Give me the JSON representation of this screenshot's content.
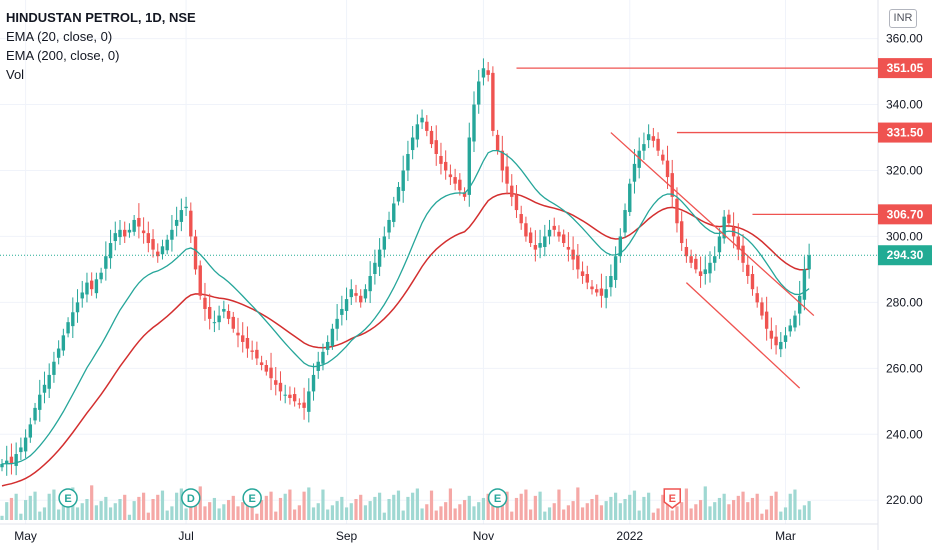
{
  "legend": {
    "title": "HINDUSTAN PETROL, 1D, NSE",
    "ema20": "EMA (20, close, 0)",
    "ema200": "EMA (200, close, 0)",
    "vol": "Vol"
  },
  "currency": "INR",
  "colors": {
    "up": "#26a69a",
    "down": "#ef5350",
    "ema20": "#26a69a",
    "ema200": "#d32f2f",
    "level_line": "#ef5350",
    "last_price": "#22ab94",
    "volume_up": "#9fd8d2",
    "volume_down": "#f5a8a6"
  },
  "chart_data": {
    "type": "candlestick",
    "y_range": [
      214,
      362
    ],
    "y_ticks": [
      "360.00",
      "340.00",
      "320.00",
      "300.00",
      "280.00",
      "260.00",
      "240.00",
      "220.00"
    ],
    "x_ticks": [
      "May",
      "Jul",
      "Sep",
      "Nov",
      "2022",
      "Mar"
    ],
    "price_levels": [
      {
        "label": "351.05",
        "value": 351.05
      },
      {
        "label": "331.50",
        "value": 331.5
      },
      {
        "label": "306.70",
        "value": 306.7
      }
    ],
    "last_price": {
      "label": "294.30",
      "value": 294.3
    },
    "trendlines": [
      {
        "from": [
          129,
          331.5
        ],
        "to": [
          172,
          276
        ]
      },
      {
        "from": [
          145,
          286
        ],
        "to": [
          169,
          254
        ]
      }
    ],
    "events": [
      {
        "label": "E",
        "bar": 14,
        "type": "earnings"
      },
      {
        "label": "D",
        "bar": 40,
        "type": "dividend"
      },
      {
        "label": "E",
        "bar": 53,
        "type": "earnings"
      },
      {
        "label": "E",
        "bar": 105,
        "type": "earnings"
      },
      {
        "label": "E",
        "bar": 142,
        "type": "earnings-upcoming"
      }
    ],
    "series": [
      {
        "name": "EMA (20, close, 0)",
        "style": "line"
      },
      {
        "name": "EMA (200, close, 0)",
        "style": "line"
      }
    ],
    "closes": [
      231,
      232,
      231,
      234,
      236,
      239,
      243,
      248,
      252,
      255,
      258,
      262,
      266,
      270,
      274,
      277,
      280,
      283,
      286,
      284,
      287,
      289,
      294,
      298,
      301,
      302,
      300,
      302,
      305,
      303,
      301,
      298,
      296,
      294,
      297,
      299,
      302,
      305,
      308,
      309,
      300,
      290,
      282,
      278,
      275,
      274,
      276,
      278,
      275,
      272,
      270,
      268,
      266,
      265,
      263,
      261,
      259,
      257,
      255,
      253,
      252,
      251,
      250,
      249,
      248,
      253,
      258,
      262,
      265,
      268,
      272,
      275,
      278,
      281,
      284,
      282,
      280,
      284,
      288,
      292,
      296,
      300,
      305,
      310,
      315,
      320,
      325,
      330,
      334,
      336,
      332,
      328,
      325,
      322,
      320,
      318,
      316,
      314,
      312,
      330,
      340,
      347,
      351,
      349,
      332,
      326,
      320,
      316,
      312,
      308,
      304,
      300,
      298,
      296,
      298,
      300,
      302,
      302,
      300,
      298,
      296,
      293,
      290,
      288,
      286,
      284,
      283,
      282,
      284,
      288,
      294,
      300,
      308,
      316,
      322,
      326,
      328,
      331,
      329,
      326,
      323,
      318,
      312,
      304,
      298,
      294,
      292,
      290,
      288,
      290,
      292,
      294,
      300,
      306,
      304,
      300,
      296,
      292,
      288,
      284,
      280,
      276,
      272,
      269,
      267,
      268,
      270,
      273,
      276,
      282,
      290,
      294.3
    ]
  }
}
